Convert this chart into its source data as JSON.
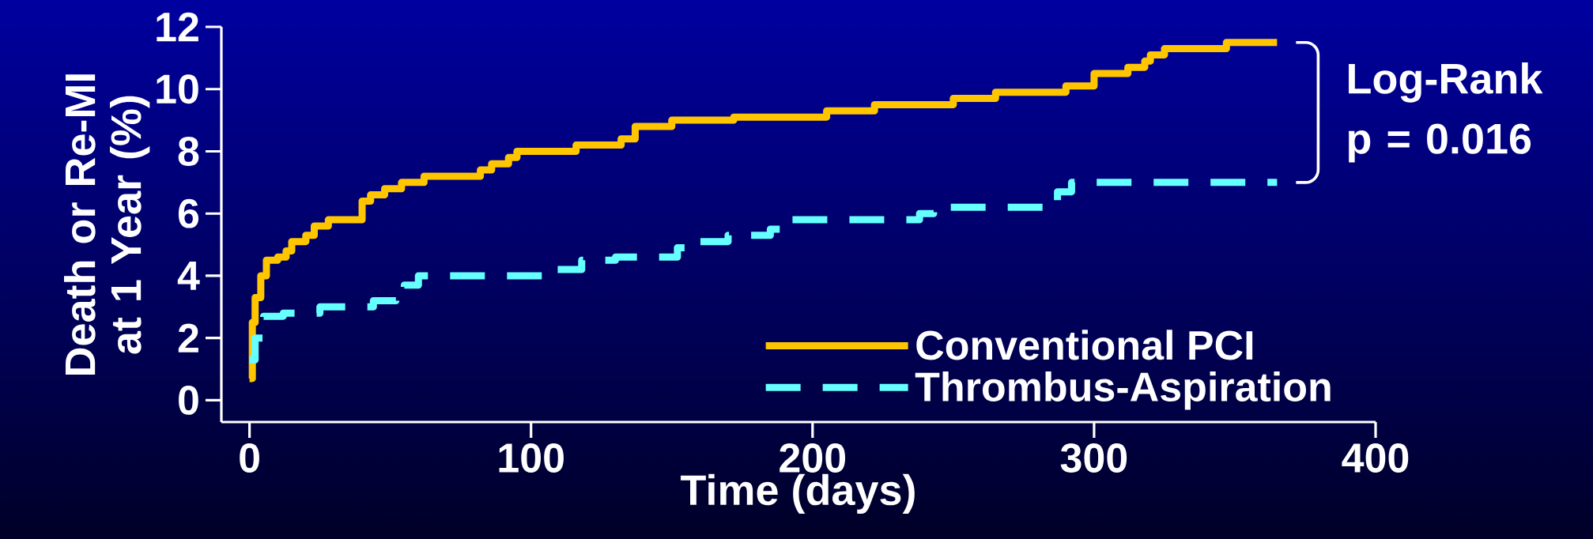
{
  "chart_data": {
    "type": "step",
    "xlabel": "Time (days)",
    "ylabel": "Death or Re-MI at 1 Year (%)",
    "xlim": [
      -10,
      400
    ],
    "ylim": [
      -0.7,
      12
    ],
    "xticks": [
      0,
      100,
      200,
      300,
      400
    ],
    "yticks": [
      0,
      2,
      4,
      6,
      8,
      10,
      12
    ],
    "legend": "bottom right",
    "grid": false,
    "marker": "none",
    "annotations": [
      "Log-Rank p = 0.016"
    ],
    "series": [
      {
        "name": "Conventional PCI",
        "color": "#ffc600",
        "line_style": "solid",
        "x": [
          0,
          1,
          2,
          4,
          6,
          10,
          13,
          15,
          20,
          23,
          28,
          40,
          43,
          48,
          54,
          62,
          82,
          86,
          92,
          95,
          116,
          132,
          137,
          150,
          172,
          205,
          222,
          250,
          265,
          290,
          300,
          312,
          318,
          320,
          325,
          347,
          365
        ],
        "values": [
          0.7,
          2.5,
          3.3,
          4.0,
          4.5,
          4.6,
          4.8,
          5.1,
          5.3,
          5.6,
          5.8,
          6.4,
          6.6,
          6.8,
          7.0,
          7.2,
          7.4,
          7.6,
          7.8,
          8.0,
          8.2,
          8.4,
          8.8,
          9.0,
          9.1,
          9.3,
          9.5,
          9.7,
          9.9,
          10.1,
          10.5,
          10.7,
          10.9,
          11.1,
          11.3,
          11.5,
          11.5
        ]
      },
      {
        "name": "Thrombus-Aspiration",
        "color": "#66ffff",
        "line_style": "dashed",
        "x": [
          0,
          2,
          5,
          12,
          25,
          44,
          52,
          55,
          60,
          106,
          118,
          130,
          152,
          157,
          170,
          185,
          192,
          238,
          243,
          283,
          287,
          292,
          365
        ],
        "values": [
          1.3,
          2.0,
          2.7,
          2.8,
          3.0,
          3.2,
          3.5,
          3.7,
          4.0,
          4.2,
          4.5,
          4.6,
          4.9,
          5.1,
          5.3,
          5.5,
          5.8,
          6.0,
          6.2,
          6.4,
          6.7,
          7.0,
          7.0
        ]
      }
    ]
  }
}
